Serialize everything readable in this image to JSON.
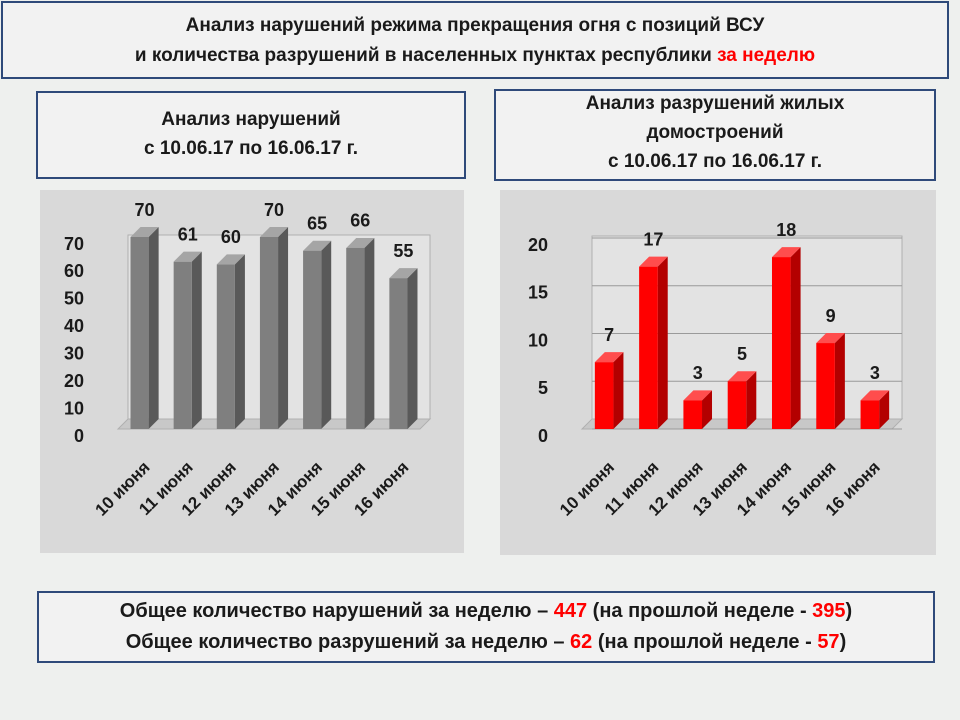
{
  "header": {
    "lines": [
      [
        {
          "text": "Анализ нарушений режима прекращения огня с позиций ВСУ"
        }
      ],
      [
        {
          "text": "и количества разрушений в населенных пунктах республики "
        },
        {
          "text": "за неделю",
          "highlight": true
        }
      ]
    ]
  },
  "highlight_color": "#ff0000",
  "chart_data": [
    {
      "type": "bar",
      "title": [
        "Анализ нарушений",
        "с 10.06.17 по 16.06.17 г."
      ],
      "categories": [
        "10 июня",
        "11 июня",
        "12 июня",
        "13 июня",
        "14 июня",
        "15 июня",
        "16 июня"
      ],
      "values": [
        70,
        61,
        60,
        70,
        65,
        66,
        55
      ],
      "color": "#7f7f7f",
      "ylim": [
        0,
        70
      ],
      "yticks": [
        0,
        10,
        20,
        30,
        40,
        50,
        60,
        70
      ],
      "grid": false
    },
    {
      "type": "bar",
      "title": [
        "Анализ разрушений жилых",
        "домостроений",
        "с 10.06.17 по 16.06.17 г."
      ],
      "categories": [
        "10 июня",
        "11 июня",
        "12 июня",
        "13 июня",
        "14 июня",
        "15 июня",
        "16 июня"
      ],
      "values": [
        7,
        17,
        3,
        5,
        18,
        9,
        3
      ],
      "color": "#ff0000",
      "ylim": [
        0,
        20
      ],
      "yticks": [
        0,
        5,
        10,
        15,
        20
      ],
      "grid": true
    }
  ],
  "summary": {
    "lines": [
      [
        {
          "text": "Общее количество нарушений за неделю – "
        },
        {
          "text": 447,
          "highlight": true
        },
        {
          "text": " (на прошлой неделе - "
        },
        {
          "text": 395,
          "highlight": true
        },
        {
          "text": ")"
        }
      ],
      [
        {
          "text": "Общее количество разрушений за неделю – "
        },
        {
          "text": 62,
          "highlight": true
        },
        {
          "text": " (на прошлой неделе - "
        },
        {
          "text": 57,
          "highlight": true
        },
        {
          "text": ")"
        }
      ]
    ]
  }
}
